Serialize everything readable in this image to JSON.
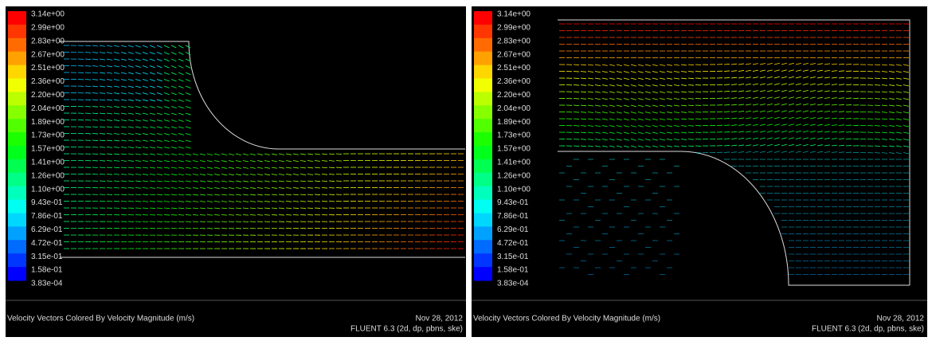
{
  "panels": [
    {
      "legend_labels": [
        "3.14e+00",
        "2.99e+00",
        "2.83e+00",
        "2.67e+00",
        "2.51e+00",
        "2.36e+00",
        "2.20e+00",
        "2.04e+00",
        "1.89e+00",
        "1.73e+00",
        "1.57e+00",
        "1.41e+00",
        "1.26e+00",
        "1.10e+00",
        "9.43e-01",
        "7.86e-01",
        "6.29e-01",
        "4.72e-01",
        "3.15e-01",
        "1.58e-01",
        "3.83e-04"
      ],
      "caption": "Velocity Vectors Colored By Velocity Magnitude (m/s)",
      "date": "Nov 28, 2012",
      "solver": "FLUENT 6.3 (2d, dp, pbns, ske)"
    },
    {
      "legend_labels": [
        "3.14e+00",
        "2.99e+00",
        "2.83e+00",
        "2.67e+00",
        "2.51e+00",
        "2.36e+00",
        "2.20e+00",
        "2.04e+00",
        "1.89e+00",
        "1.73e+00",
        "1.57e+00",
        "1.41e+00",
        "1.26e+00",
        "1.10e+00",
        "9.43e-01",
        "7.86e-01",
        "6.29e-01",
        "4.72e-01",
        "3.15e-01",
        "1.58e-01",
        "3.83e-04"
      ],
      "caption": "Velocity Vectors Colored By Velocity Magnitude (m/s)",
      "date": "Nov 28, 2012",
      "solver": "FLUENT 6.3 (2d, dp, pbns, ske)"
    }
  ]
}
